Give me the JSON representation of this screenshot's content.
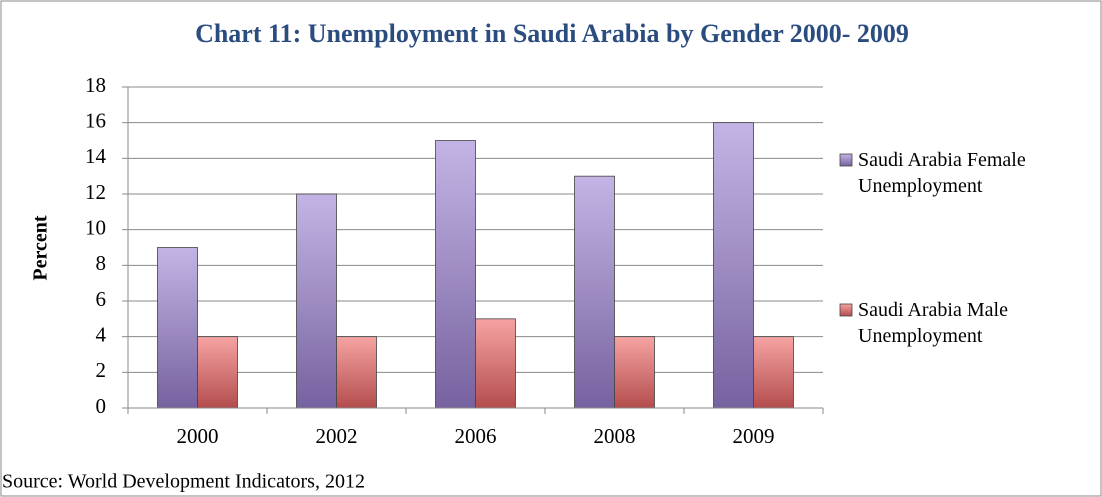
{
  "chart_data": {
    "type": "bar",
    "title": "Chart 11: Unemployment in Saudi Arabia by Gender 2000- 2009",
    "y_label": "Percent",
    "source": "Source: World Development Indicators, 2012",
    "categories": [
      "2000",
      "2002",
      "2006",
      "2008",
      "2009"
    ],
    "series": [
      {
        "name": "Saudi Arabia Female Unemployment",
        "color": "#9d82d4",
        "values": [
          9,
          12,
          15,
          13,
          16
        ]
      },
      {
        "name": "Saudi Arabia Male Unemployment",
        "color": "#f06666",
        "values": [
          4,
          4,
          5,
          4,
          4
        ]
      }
    ],
    "ylim": [
      0,
      18
    ],
    "yticks": [
      0,
      2,
      4,
      6,
      8,
      10,
      12,
      14,
      16,
      18
    ],
    "grid": true,
    "legend": "right"
  }
}
